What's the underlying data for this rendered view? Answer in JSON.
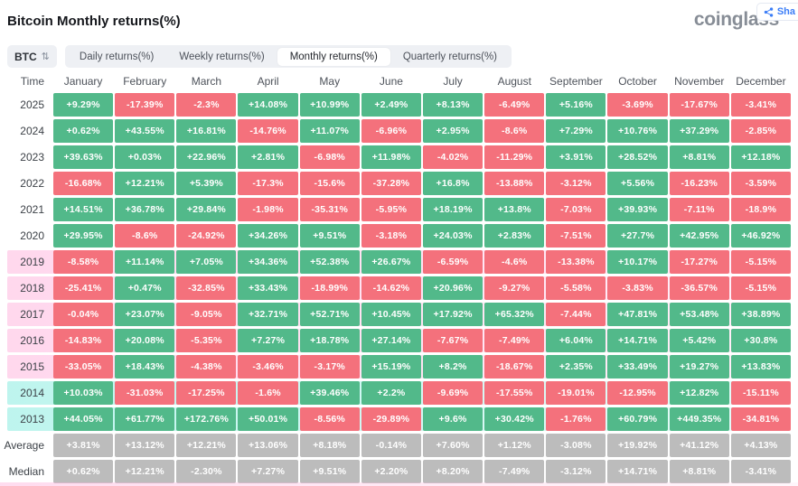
{
  "header": {
    "title": "Bitcoin Monthly returns(%)",
    "logo": "coinglass",
    "share_label": "Sha"
  },
  "controls": {
    "symbol": "BTC",
    "tabs": [
      {
        "label": "Daily returns(%)",
        "active": false
      },
      {
        "label": "Weekly returns(%)",
        "active": false
      },
      {
        "label": "Monthly returns(%)",
        "active": true
      },
      {
        "label": "Quarterly returns(%)",
        "active": false
      }
    ]
  },
  "icons": {
    "sort_glyph": "⇅",
    "share_icon": "share-nodes"
  },
  "colors": {
    "positive": "#52b98a",
    "negative": "#f4717c",
    "neutral": "#bcbcbc",
    "accent": "#3b7df7"
  },
  "table": {
    "columns": [
      "Time",
      "January",
      "February",
      "March",
      "April",
      "May",
      "June",
      "July",
      "August",
      "September",
      "October",
      "November",
      "December"
    ],
    "rows": [
      {
        "label": "2025",
        "values": [
          "+9.29%",
          "-17.39%",
          "-2.3%",
          "+14.08%",
          "+10.99%",
          "+2.49%",
          "+8.13%",
          "-6.49%",
          "+5.16%",
          "-3.69%",
          "-17.67%",
          "-3.41%"
        ]
      },
      {
        "label": "2024",
        "values": [
          "+0.62%",
          "+43.55%",
          "+16.81%",
          "-14.76%",
          "+11.07%",
          "-6.96%",
          "+2.95%",
          "-8.6%",
          "+7.29%",
          "+10.76%",
          "+37.29%",
          "-2.85%"
        ]
      },
      {
        "label": "2023",
        "values": [
          "+39.63%",
          "+0.03%",
          "+22.96%",
          "+2.81%",
          "-6.98%",
          "+11.98%",
          "-4.02%",
          "-11.29%",
          "+3.91%",
          "+28.52%",
          "+8.81%",
          "+12.18%"
        ]
      },
      {
        "label": "2022",
        "values": [
          "-16.68%",
          "+12.21%",
          "+5.39%",
          "-17.3%",
          "-15.6%",
          "-37.28%",
          "+16.8%",
          "-13.88%",
          "-3.12%",
          "+5.56%",
          "-16.23%",
          "-3.59%"
        ]
      },
      {
        "label": "2021",
        "values": [
          "+14.51%",
          "+36.78%",
          "+29.84%",
          "-1.98%",
          "-35.31%",
          "-5.95%",
          "+18.19%",
          "+13.8%",
          "-7.03%",
          "+39.93%",
          "-7.11%",
          "-18.9%"
        ]
      },
      {
        "label": "2020",
        "values": [
          "+29.95%",
          "-8.6%",
          "-24.92%",
          "+34.26%",
          "+9.51%",
          "-3.18%",
          "+24.03%",
          "+2.83%",
          "-7.51%",
          "+27.7%",
          "+42.95%",
          "+46.92%"
        ]
      },
      {
        "label": "2019",
        "tint": "pink",
        "values": [
          "-8.58%",
          "+11.14%",
          "+7.05%",
          "+34.36%",
          "+52.38%",
          "+26.67%",
          "-6.59%",
          "-4.6%",
          "-13.38%",
          "+10.17%",
          "-17.27%",
          "-5.15%"
        ]
      },
      {
        "label": "2018",
        "tint": "pink",
        "values": [
          "-25.41%",
          "+0.47%",
          "-32.85%",
          "+33.43%",
          "-18.99%",
          "-14.62%",
          "+20.96%",
          "-9.27%",
          "-5.58%",
          "-3.83%",
          "-36.57%",
          "-5.15%"
        ]
      },
      {
        "label": "2017",
        "tint": "pink",
        "values": [
          "-0.04%",
          "+23.07%",
          "-9.05%",
          "+32.71%",
          "+52.71%",
          "+10.45%",
          "+17.92%",
          "+65.32%",
          "-7.44%",
          "+47.81%",
          "+53.48%",
          "+38.89%"
        ]
      },
      {
        "label": "2016",
        "tint": "pink",
        "values": [
          "-14.83%",
          "+20.08%",
          "-5.35%",
          "+7.27%",
          "+18.78%",
          "+27.14%",
          "-7.67%",
          "-7.49%",
          "+6.04%",
          "+14.71%",
          "+5.42%",
          "+30.8%"
        ]
      },
      {
        "label": "2015",
        "tint": "pink",
        "values": [
          "-33.05%",
          "+18.43%",
          "-4.38%",
          "-3.46%",
          "-3.17%",
          "+15.19%",
          "+8.2%",
          "-18.67%",
          "+2.35%",
          "+33.49%",
          "+19.27%",
          "+13.83%"
        ]
      },
      {
        "label": "2014",
        "tint": "cyan",
        "values": [
          "+10.03%",
          "-31.03%",
          "-17.25%",
          "-1.6%",
          "+39.46%",
          "+2.2%",
          "-9.69%",
          "-17.55%",
          "-19.01%",
          "-12.95%",
          "+12.82%",
          "-15.11%"
        ]
      },
      {
        "label": "2013",
        "tint": "cyan",
        "values": [
          "+44.05%",
          "+61.77%",
          "+172.76%",
          "+50.01%",
          "-8.56%",
          "-29.89%",
          "+9.6%",
          "+30.42%",
          "-1.76%",
          "+60.79%",
          "+449.35%",
          "-34.81%"
        ]
      },
      {
        "label": "Average",
        "summary": true,
        "values": [
          "+3.81%",
          "+13.12%",
          "+12.21%",
          "+13.06%",
          "+8.18%",
          "-0.14%",
          "+7.60%",
          "+1.12%",
          "-3.08%",
          "+19.92%",
          "+41.12%",
          "+4.13%"
        ]
      },
      {
        "label": "Median",
        "summary": true,
        "values": [
          "+0.62%",
          "+12.21%",
          "-2.30%",
          "+7.27%",
          "+9.51%",
          "+2.20%",
          "+8.20%",
          "-7.49%",
          "-3.12%",
          "+14.71%",
          "+8.81%",
          "-3.41%"
        ]
      }
    ]
  }
}
